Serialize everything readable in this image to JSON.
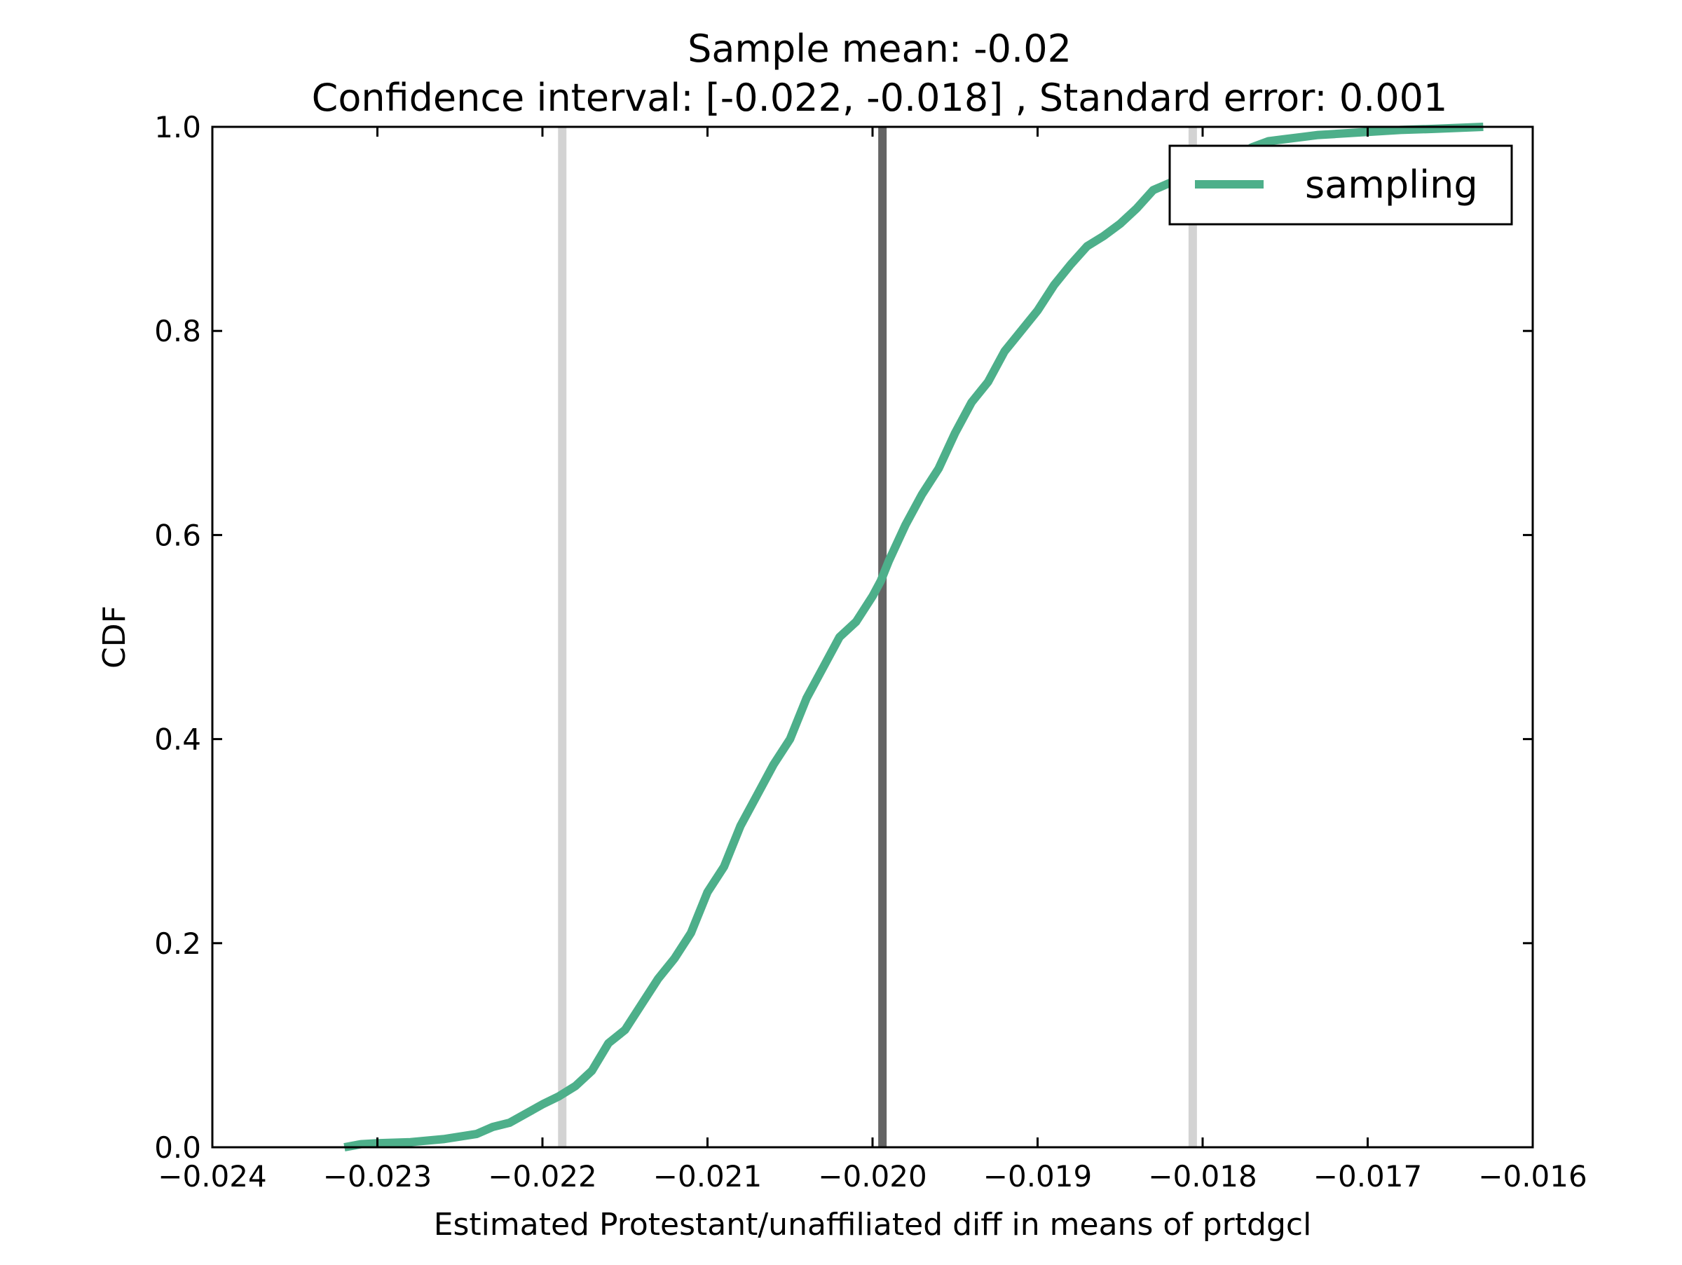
{
  "chart_data": {
    "type": "line",
    "title_line1": "Sample mean: -0.02",
    "title_line2": "Confidence interval: [-0.022, -0.018] , Standard error: 0.001",
    "xlabel": "Estimated Protestant/unaffiliated diff in means of prtdgcl",
    "ylabel": "CDF",
    "xlim": [
      -0.024,
      -0.016
    ],
    "ylim": [
      0.0,
      1.0
    ],
    "x_ticks": [
      -0.024,
      -0.023,
      -0.022,
      -0.021,
      -0.02,
      -0.019,
      -0.018,
      -0.017,
      -0.016
    ],
    "x_tick_labels": [
      "−0.024",
      "−0.023",
      "−0.022",
      "−0.021",
      "−0.020",
      "−0.019",
      "−0.018",
      "−0.017",
      "−0.016"
    ],
    "y_ticks": [
      0.0,
      0.2,
      0.4,
      0.6,
      0.8,
      1.0
    ],
    "y_tick_labels": [
      "0.0",
      "0.2",
      "0.4",
      "0.6",
      "0.8",
      "1.0"
    ],
    "grid": false,
    "legend_position": "top-right",
    "series": [
      {
        "name": "sampling",
        "color": "#4daf8a",
        "x": [
          -0.0232,
          -0.0231,
          -0.023,
          -0.0228,
          -0.0226,
          -0.0224,
          -0.0223,
          -0.0222,
          -0.0221,
          -0.022,
          -0.0219,
          -0.0218,
          -0.0217,
          -0.0216,
          -0.0215,
          -0.0214,
          -0.0213,
          -0.0212,
          -0.0211,
          -0.021,
          -0.0209,
          -0.0208,
          -0.0207,
          -0.0206,
          -0.0205,
          -0.0204,
          -0.0203,
          -0.0202,
          -0.0201,
          -0.02,
          -0.01995,
          -0.0199,
          -0.0198,
          -0.0197,
          -0.0196,
          -0.0195,
          -0.0194,
          -0.0193,
          -0.0192,
          -0.0191,
          -0.019,
          -0.0189,
          -0.0188,
          -0.0187,
          -0.0186,
          -0.0185,
          -0.0184,
          -0.0183,
          -0.0182,
          -0.0181,
          -0.018,
          -0.0179,
          -0.0178,
          -0.0177,
          -0.0176,
          -0.0175,
          -0.0174,
          -0.0173,
          -0.0172,
          -0.017,
          -0.0168,
          -0.0166,
          -0.0163
        ],
        "y": [
          0.0,
          0.003,
          0.004,
          0.005,
          0.008,
          0.013,
          0.02,
          0.024,
          0.033,
          0.042,
          0.05,
          0.06,
          0.075,
          0.102,
          0.115,
          0.14,
          0.165,
          0.185,
          0.21,
          0.25,
          0.275,
          0.315,
          0.345,
          0.375,
          0.4,
          0.44,
          0.47,
          0.5,
          0.515,
          0.54,
          0.555,
          0.575,
          0.61,
          0.64,
          0.665,
          0.7,
          0.73,
          0.75,
          0.78,
          0.8,
          0.82,
          0.845,
          0.865,
          0.883,
          0.893,
          0.905,
          0.92,
          0.938,
          0.945,
          0.95,
          0.956,
          0.962,
          0.97,
          0.98,
          0.986,
          0.988,
          0.99,
          0.992,
          0.993,
          0.995,
          0.997,
          0.998,
          1.0
        ]
      }
    ],
    "vertical_lines": [
      {
        "name": "ci-lower",
        "x": -0.02188,
        "color": "#d3d3d3"
      },
      {
        "name": "sample-mean",
        "x": -0.01994,
        "color": "#646464"
      },
      {
        "name": "ci-upper",
        "x": -0.01806,
        "color": "#d3d3d3"
      }
    ]
  }
}
